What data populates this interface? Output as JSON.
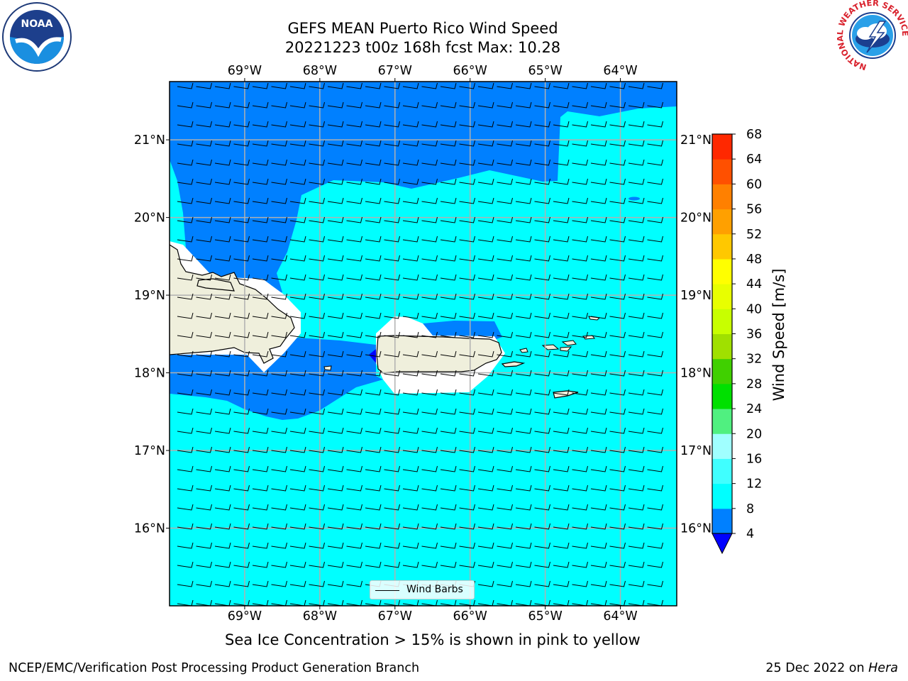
{
  "header": {
    "title_line1": "GEFS MEAN Puerto Rico Wind Speed",
    "title_line2": "20221223 t00z 168h fcst   Max: 10.28"
  },
  "logos": {
    "left": {
      "icon": "noaa-logo-icon",
      "text": "NOAA"
    },
    "right": {
      "icon": "nws-logo-icon",
      "text": "NATIONAL WEATHER SERVICE"
    }
  },
  "map": {
    "lon_range": [
      -70.0,
      -63.25
    ],
    "lat_range": [
      15.0,
      21.75
    ],
    "lon_ticks": [
      {
        "value": -69,
        "label": "69°W"
      },
      {
        "value": -68,
        "label": "68°W"
      },
      {
        "value": -67,
        "label": "67°W"
      },
      {
        "value": -66,
        "label": "66°W"
      },
      {
        "value": -65,
        "label": "65°W"
      },
      {
        "value": -64,
        "label": "64°W"
      }
    ],
    "lat_ticks": [
      {
        "value": 21,
        "label": "21°N"
      },
      {
        "value": 20,
        "label": "20°N"
      },
      {
        "value": 19,
        "label": "19°N"
      },
      {
        "value": 18,
        "label": "18°N"
      },
      {
        "value": 17,
        "label": "17°N"
      },
      {
        "value": 16,
        "label": "16°N"
      }
    ],
    "grid": true,
    "legend": {
      "label": "Wind Barbs",
      "placement": "bottom-center"
    },
    "colors": {
      "ocean_4_8": "#0080ff",
      "ocean_8_12": "#00ffff",
      "land": "#efefdc",
      "below_min": "#0000ff"
    }
  },
  "colorbar": {
    "label": "Wind Speed [m/s]",
    "levels": [
      4,
      8,
      12,
      16,
      20,
      24,
      28,
      32,
      36,
      40,
      44,
      48,
      52,
      56,
      60,
      64,
      68
    ],
    "colors": [
      "#0080ff",
      "#00ffff",
      "#40ffff",
      "#a0ffff",
      "#50f080",
      "#00e000",
      "#40d000",
      "#a0e000",
      "#c8ff00",
      "#e8ff00",
      "#ffff00",
      "#ffc800",
      "#ffa000",
      "#ff8000",
      "#ff5000",
      "#ff2800",
      "#ff0000"
    ],
    "underflow_color": "#0000ff"
  },
  "footer": {
    "note": "Sea Ice Concentration > 15% is shown in pink to yellow",
    "left": "NCEP/EMC/Verification Post Processing Product Generation Branch",
    "right_date": "25 Dec 2022 on ",
    "right_host": "Hera"
  }
}
